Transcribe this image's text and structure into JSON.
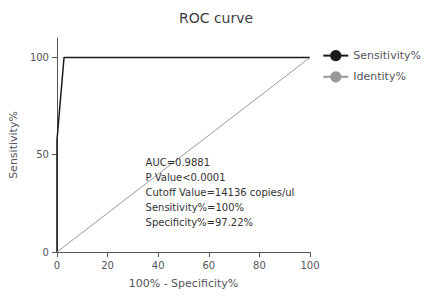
{
  "chart_data": {
    "type": "line",
    "title": "ROC curve",
    "xlabel": "100% - Specificity%",
    "ylabel": "Sensitivity%",
    "xlim": [
      0,
      100
    ],
    "ylim": [
      0,
      110
    ],
    "xticks": [
      0,
      20,
      40,
      60,
      80,
      100
    ],
    "yticks": [
      0,
      50,
      100
    ],
    "grid": false,
    "legend": "right",
    "series": [
      {
        "name": "Sensitivity%",
        "color": "#1a1a1a",
        "x": [
          0,
          0,
          2.78,
          100
        ],
        "values": [
          0,
          57.5,
          100,
          100
        ]
      },
      {
        "name": "Identity%",
        "color": "#999999",
        "x": [
          0,
          100
        ],
        "values": [
          0,
          100
        ]
      }
    ],
    "annotations": [
      {
        "text": "AUC=0.9881\nP Value<0.0001\nCutoff Value=14136 copies/ul\nSensitivity%=100%\nSpecificity%=97.22%",
        "x": 35,
        "y": 50
      }
    ]
  }
}
